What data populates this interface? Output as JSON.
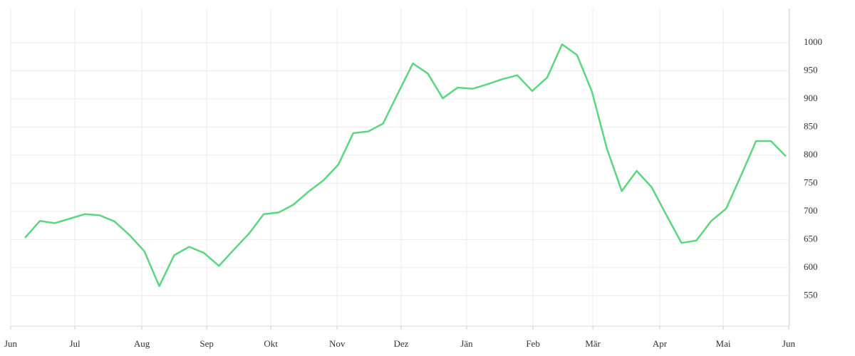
{
  "chart_data": {
    "type": "line",
    "x": [
      0,
      1,
      2,
      3,
      4,
      5,
      6,
      7,
      8,
      9,
      10,
      11,
      12,
      13,
      14,
      15,
      16,
      17,
      18,
      19,
      20,
      21,
      22,
      23,
      24,
      25,
      26,
      27,
      28,
      29,
      30,
      31,
      32,
      33,
      34,
      35,
      36,
      37,
      38,
      39,
      40,
      41,
      42,
      43,
      44,
      45,
      46,
      47,
      48,
      49,
      50,
      51
    ],
    "values": [
      653,
      683,
      679,
      687,
      695,
      693,
      682,
      658,
      629,
      567,
      622,
      637,
      626,
      603,
      632,
      660,
      695,
      698,
      712,
      735,
      755,
      783,
      839,
      842,
      856,
      910,
      963,
      945,
      901,
      920,
      918,
      926,
      935,
      942,
      914,
      938,
      997,
      978,
      913,
      812,
      736,
      772,
      743,
      693,
      644,
      648,
      683,
      705,
      764,
      825,
      825,
      798
    ],
    "color": "#5cd67f",
    "xlim": [
      -0.96,
      51.24
    ],
    "xticks": [
      {
        "value": -0.96,
        "label": "Jun"
      },
      {
        "value": 3.34,
        "label": "Jul"
      },
      {
        "value": 7.83,
        "label": "Aug"
      },
      {
        "value": 12.18,
        "label": "Sep"
      },
      {
        "value": 16.48,
        "label": "Okt"
      },
      {
        "value": 20.92,
        "label": "Nov"
      },
      {
        "value": 25.21,
        "label": "Dez"
      },
      {
        "value": 29.6,
        "label": "Jän"
      },
      {
        "value": 34.05,
        "label": "Feb"
      },
      {
        "value": 38.06,
        "label": "Mär"
      },
      {
        "value": 42.55,
        "label": "Apr"
      },
      {
        "value": 46.8,
        "label": "Mai"
      },
      {
        "value": 51.19,
        "label": "Jun"
      }
    ],
    "ylim": [
      496,
      1053
    ],
    "yticks": [
      550,
      600,
      650,
      700,
      750,
      800,
      850,
      900,
      950,
      1000
    ],
    "grid": true
  }
}
